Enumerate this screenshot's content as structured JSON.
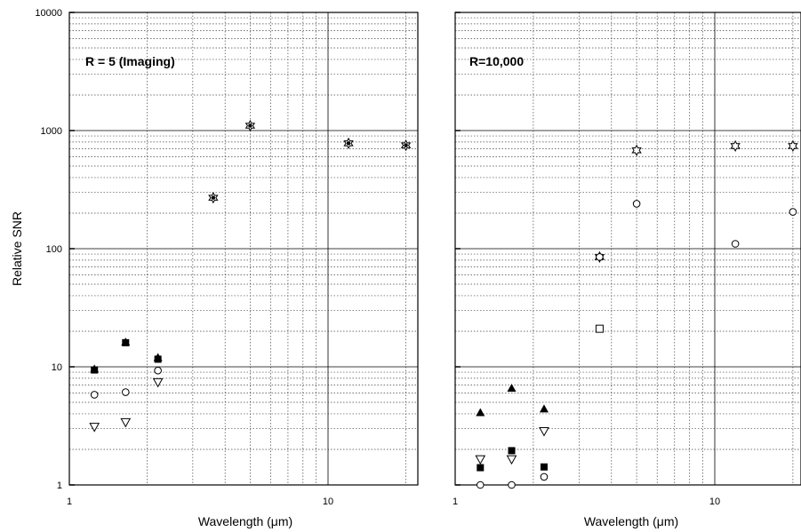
{
  "chart_data": [
    {
      "type": "scatter",
      "title": "R = 5 (Imaging)",
      "xlabel": "Wavelength (μm)",
      "ylabel": "Relative SNR",
      "xscale": "log",
      "yscale": "log",
      "xlim": [
        1,
        22
      ],
      "ylim": [
        1,
        10000
      ],
      "xticks": [
        {
          "value": 1,
          "label": "1"
        },
        {
          "value": 10,
          "label": "10"
        }
      ],
      "yticks": [
        {
          "value": 1,
          "label": "1"
        },
        {
          "value": 10,
          "label": "10"
        },
        {
          "value": 100,
          "label": "100"
        },
        {
          "value": 1000,
          "label": "1000"
        },
        {
          "value": 10000,
          "label": "10000"
        }
      ],
      "grid": true,
      "legend": "none",
      "series": [
        {
          "marker": "star-open",
          "x": [
            3.6,
            5.0,
            12.0,
            20.0
          ],
          "y": [
            270,
            1100,
            780,
            750
          ]
        },
        {
          "marker": "circle-filled",
          "x": [
            3.6,
            5.0,
            12.0,
            20.0
          ],
          "y": [
            270,
            1100,
            780,
            750
          ]
        },
        {
          "marker": "square-filled",
          "x": [
            1.25,
            1.65,
            2.2
          ],
          "y": [
            9.4,
            16,
            11.6
          ]
        },
        {
          "marker": "triangle-up-filled",
          "x": [
            1.25,
            1.65,
            2.2
          ],
          "y": [
            9.6,
            16.2,
            12
          ]
        },
        {
          "marker": "circle-open",
          "x": [
            1.25,
            1.65,
            2.2
          ],
          "y": [
            5.8,
            6.1,
            9.3
          ]
        },
        {
          "marker": "triangle-down-open",
          "x": [
            1.25,
            1.65,
            2.2
          ],
          "y": [
            3.1,
            3.4,
            7.4
          ]
        }
      ]
    },
    {
      "type": "scatter",
      "title": "R=10,000",
      "xlabel": "Wavelength (μm)",
      "ylabel": "",
      "xscale": "log",
      "yscale": "log",
      "xlim": [
        1,
        22
      ],
      "ylim": [
        1,
        10000
      ],
      "xticks": [
        {
          "value": 1,
          "label": "1"
        },
        {
          "value": 10,
          "label": "10"
        }
      ],
      "yticks": [],
      "grid": true,
      "legend": "none",
      "series": [
        {
          "marker": "star-open",
          "x": [
            3.6,
            5.0,
            12.0,
            20.0
          ],
          "y": [
            85,
            680,
            740,
            740
          ]
        },
        {
          "marker": "circle-open",
          "x": [
            3.6,
            5.0,
            12.0,
            20.0
          ],
          "y": [
            85,
            240,
            110,
            205
          ]
        },
        {
          "marker": "square-open",
          "x": [
            3.6
          ],
          "y": [
            21
          ]
        },
        {
          "marker": "triangle-up-filled",
          "x": [
            1.25,
            1.65,
            2.2
          ],
          "y": [
            4.1,
            6.6,
            4.4
          ]
        },
        {
          "marker": "triangle-down-open",
          "x": [
            1.25,
            1.65,
            2.2
          ],
          "y": [
            1.65,
            1.65,
            2.85
          ]
        },
        {
          "marker": "square-filled",
          "x": [
            1.25,
            1.65,
            2.2
          ],
          "y": [
            1.4,
            1.95,
            1.42
          ]
        },
        {
          "marker": "circle-open",
          "x": [
            1.25,
            1.65,
            2.2
          ],
          "y": [
            1.0,
            1.0,
            1.17
          ]
        }
      ]
    }
  ]
}
